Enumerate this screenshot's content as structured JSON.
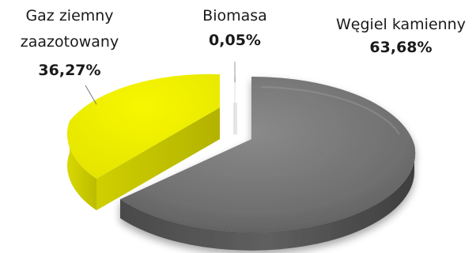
{
  "chart_data": {
    "type": "pie",
    "variant": "3d-exploded",
    "slices": [
      {
        "name_lines": [
          "Węgiel kamienny"
        ],
        "value": 63.68,
        "value_label": "63,68%",
        "color": "#737373"
      },
      {
        "name_lines": [
          "Gaz ziemny",
          "zaazotowany"
        ],
        "value": 36.27,
        "value_label": "36,27%",
        "color": "#f2f200"
      },
      {
        "name_lines": [
          "Biomasa"
        ],
        "value": 0.05,
        "value_label": "0,05%",
        "color": "#e6e6e6"
      }
    ]
  }
}
